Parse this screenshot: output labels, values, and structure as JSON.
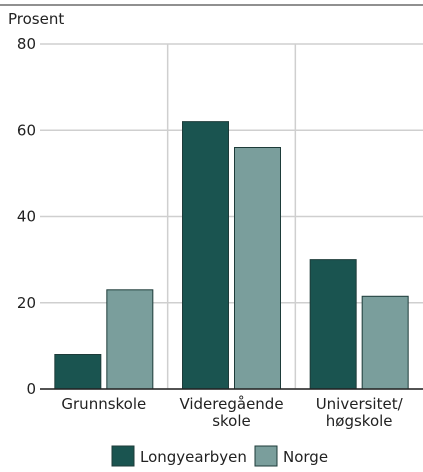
{
  "chart_data": {
    "type": "bar",
    "y_label": "Prosent",
    "categories": [
      [
        "Grunnskole"
      ],
      [
        "Videregående",
        "skole"
      ],
      [
        "Universitet/",
        "høgskole"
      ]
    ],
    "series": [
      {
        "name": "Longyearbyen",
        "color": "#1a5450",
        "values": [
          8,
          62,
          30
        ]
      },
      {
        "name": "Norge",
        "color": "#7a9e9c",
        "values": [
          23,
          56,
          21.5
        ]
      }
    ],
    "ylim": [
      0,
      80
    ],
    "yticks": [
      0,
      20,
      40,
      60,
      80
    ],
    "grid": true,
    "legend": "bottom"
  }
}
